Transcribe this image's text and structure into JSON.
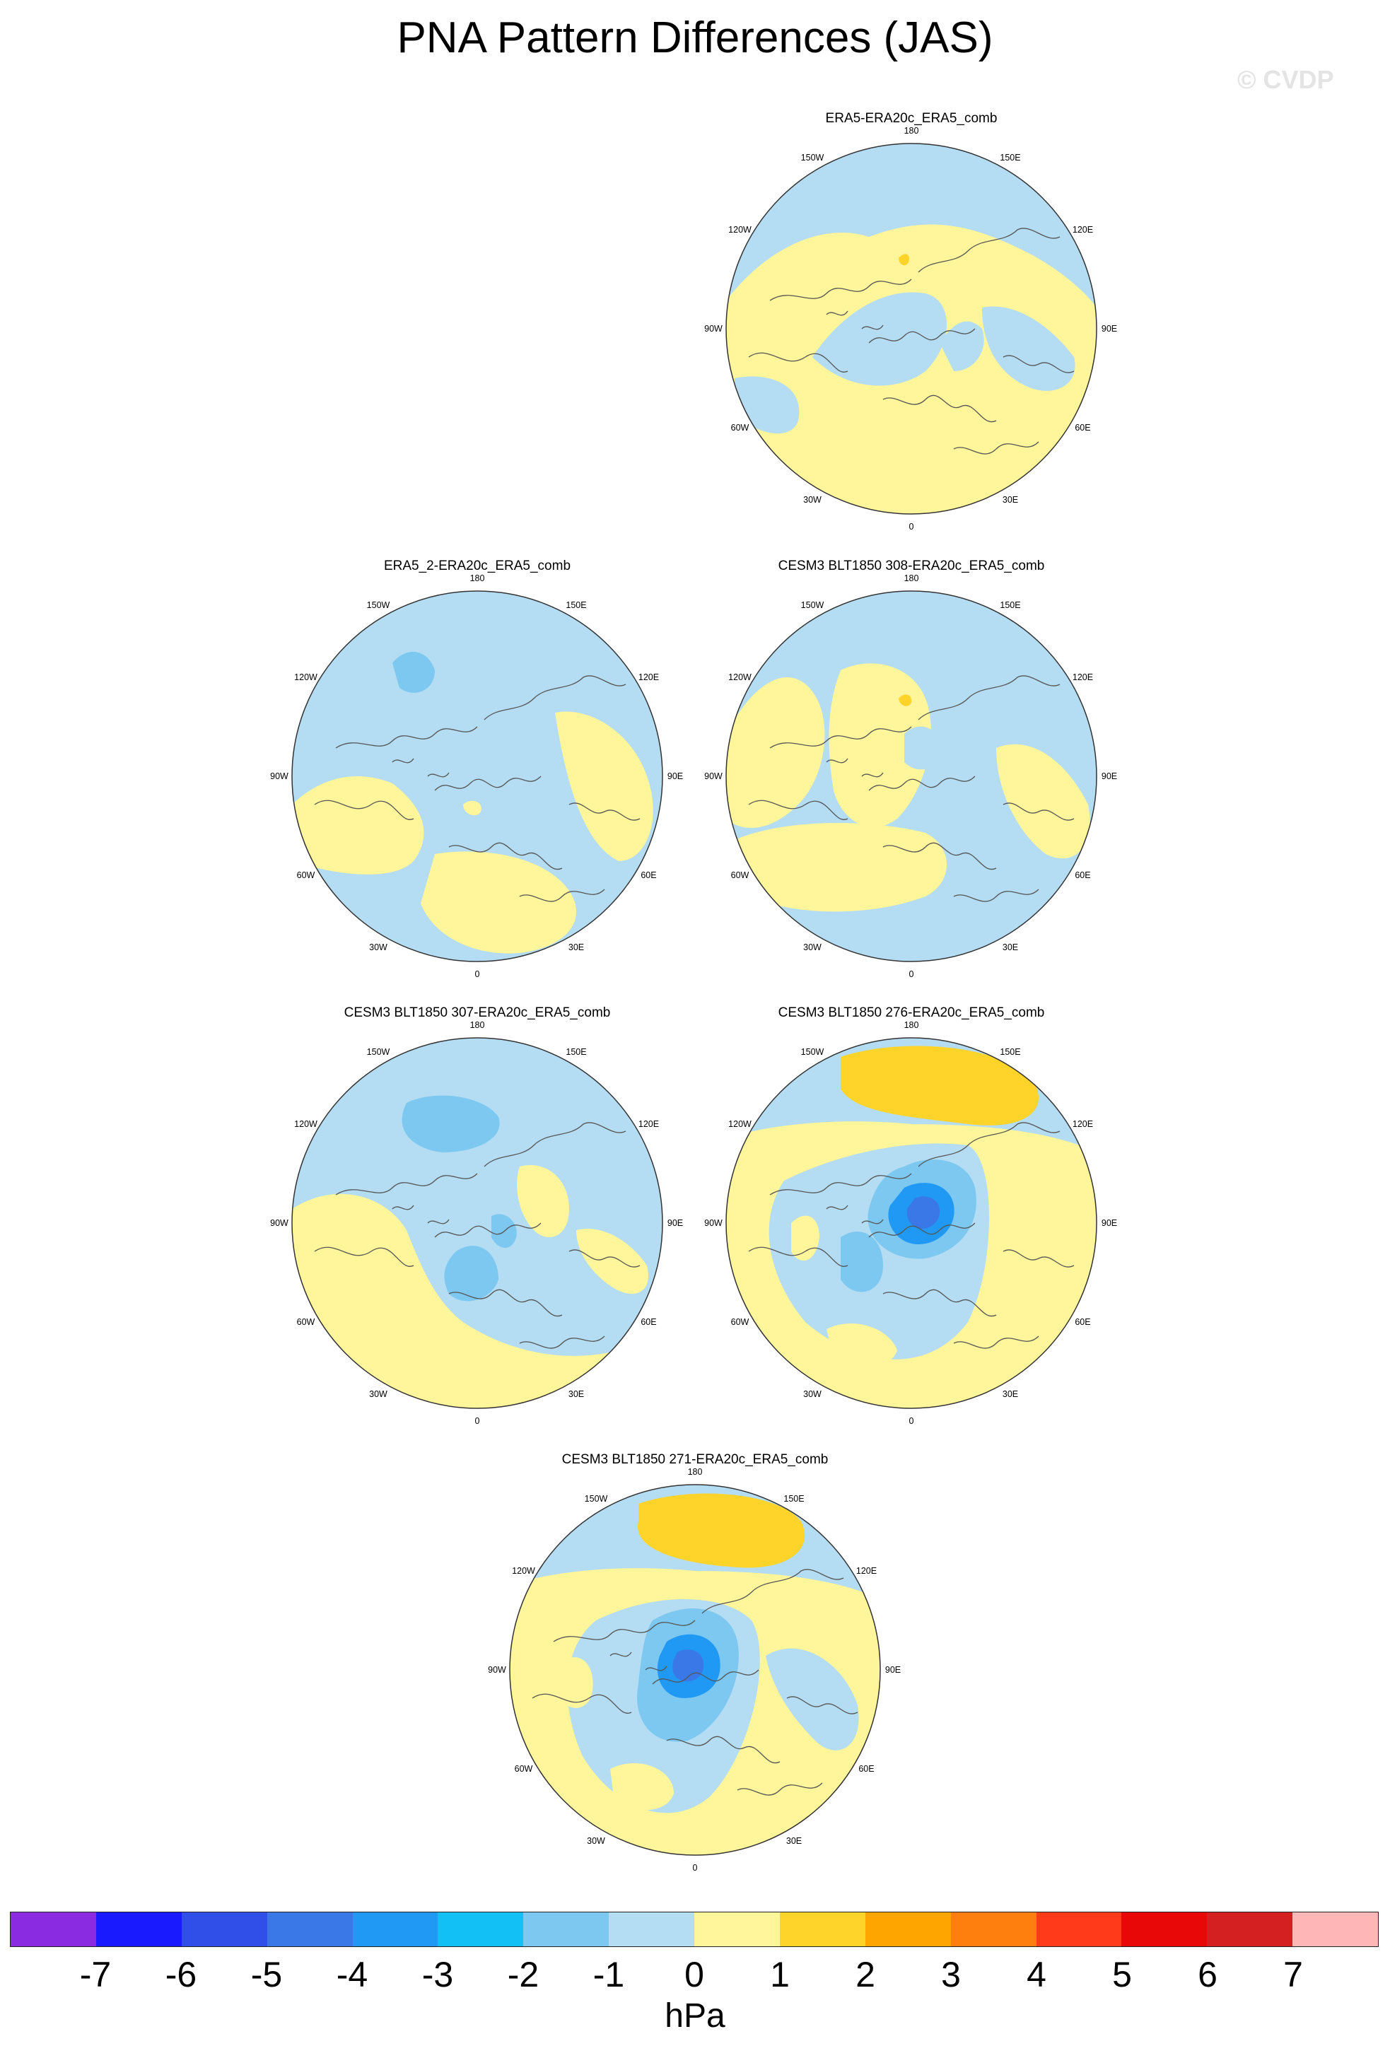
{
  "title": "PNA Pattern Differences (JAS)",
  "watermark": "© CVDP",
  "coord_labels": [
    "180",
    "150E",
    "120E",
    "90E",
    "60E",
    "30E",
    "0",
    "30W",
    "60W",
    "90W",
    "120W",
    "150W"
  ],
  "panels": [
    {
      "title": "ERA5-ERA20c_ERA5_comb",
      "variant": "a"
    },
    {
      "title": "ERA5_2-ERA20c_ERA5_comb",
      "variant": "b"
    },
    {
      "title": "CESM3 BLT1850 308-ERA20c_ERA5_comb",
      "variant": "c"
    },
    {
      "title": "CESM3 BLT1850 307-ERA20c_ERA5_comb",
      "variant": "d"
    },
    {
      "title": "CESM3 BLT1850 276-ERA20c_ERA5_comb",
      "variant": "e"
    },
    {
      "title": "CESM3 BLT1850 271-ERA20c_ERA5_comb",
      "variant": "f"
    }
  ],
  "colorbar": {
    "units": "hPa",
    "tick_labels": [
      "-7",
      "-6",
      "-5",
      "-4",
      "-3",
      "-2",
      "-1",
      "0",
      "1",
      "2",
      "3",
      "4",
      "5",
      "6",
      "7"
    ],
    "colors": [
      "#8a2be2",
      "#1a1aff",
      "#2f4fe8",
      "#3a78e8",
      "#2099f5",
      "#12c0f5",
      "#7cc8f0",
      "#b4dcf2",
      "#fff59a",
      "#ffd42a",
      "#ffa500",
      "#ff7f0e",
      "#ff3a1a",
      "#e80808",
      "#d42020",
      "#ffb6b6"
    ]
  }
}
